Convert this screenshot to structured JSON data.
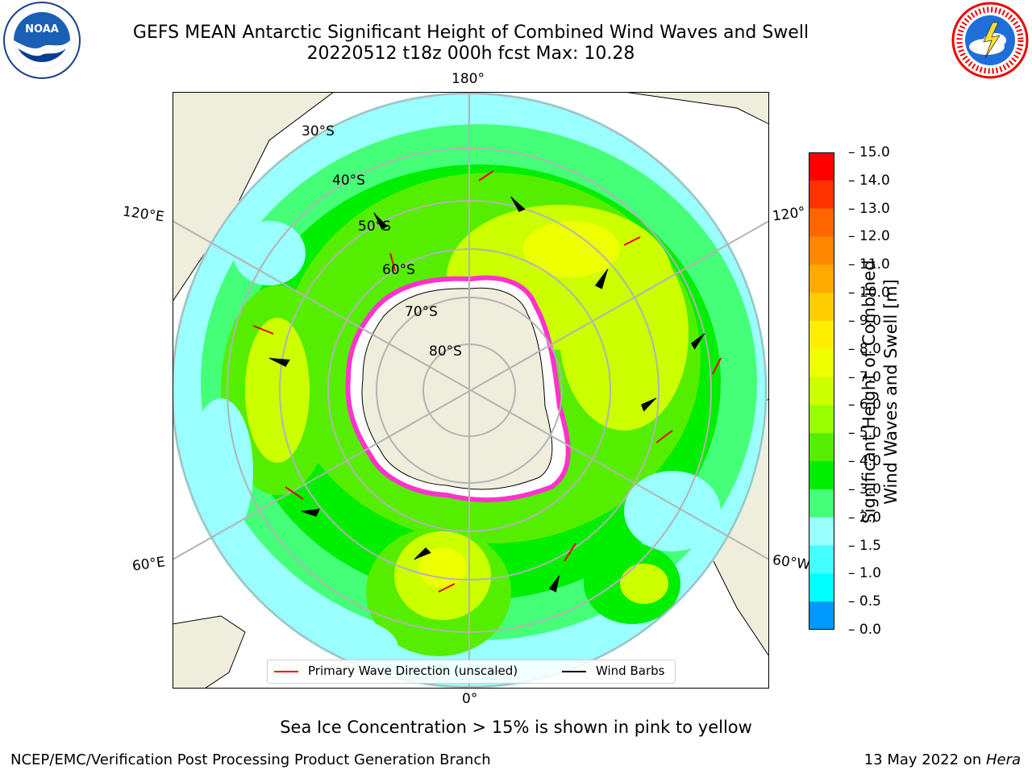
{
  "title_line1": "GEFS MEAN Antarctic Significant Height of Combined Wind Waves and Swell",
  "title_line2": "20220512 t18z 000h fcst   Max: 10.28",
  "lon_labels": {
    "top": "180°",
    "bottom": "0°",
    "left_upper": "120°E",
    "left_lower": "60°E",
    "right_upper": "120°",
    "right_lower": "60°W"
  },
  "lat_labels": [
    "30°S",
    "40°S",
    "50°S",
    "60°S",
    "70°S",
    "80°S"
  ],
  "colorbar": {
    "title_line1": "Significant Height of Combined",
    "title_line2": "Wind Waves and Swell [m]",
    "ticks": [
      "15.0",
      "14.0",
      "13.0",
      "12.0",
      "11.0",
      "10.0",
      "9.0",
      "8.0",
      "7.0",
      "6.0",
      "5.0",
      "4.0",
      "3.0",
      "2.0",
      "1.5",
      "1.0",
      "0.5",
      "0.0"
    ],
    "colors": [
      "#ff0000",
      "#ff3300",
      "#ff6600",
      "#ff8800",
      "#ffaa00",
      "#ffcc00",
      "#ffee00",
      "#eeff00",
      "#ccff00",
      "#99ff00",
      "#55ee00",
      "#00ee00",
      "#44ff77",
      "#99ffff",
      "#44ffff",
      "#00ffff",
      "#0099ff",
      "#0044ff",
      "#0000ff"
    ]
  },
  "legend": {
    "wave_label": "Primary Wave Direction (unscaled)",
    "wind_label": "Wind Barbs",
    "wave_color": "#ff0000",
    "wind_color": "#000000"
  },
  "note": "Sea Ice Concentration > 15% is shown in pink to yellow",
  "credit": "NCEP/EMC/Verification Post Processing Product Generation Branch",
  "date_prefix": "13 May 2022 on ",
  "date_machine": "Hera",
  "logos": {
    "left": "noaa-logo",
    "right": "nws-logo"
  }
}
